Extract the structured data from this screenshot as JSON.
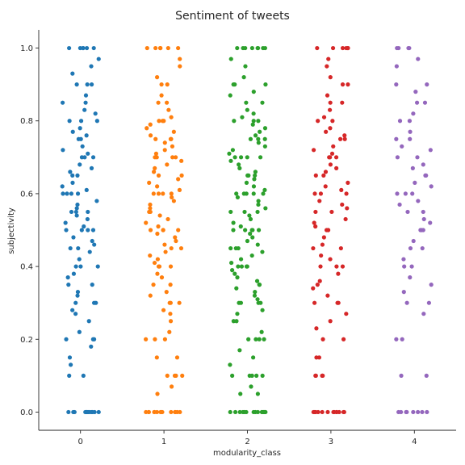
{
  "chart_data": {
    "type": "scatter",
    "subtype": "strip",
    "title": "Sentiment of tweets",
    "xlabel": "modularity_class",
    "ylabel": "subjectivity",
    "ylim": [
      -0.05,
      1.05
    ],
    "yticks": [
      "0.0",
      "0.2",
      "0.4",
      "0.6",
      "0.8",
      "1.0"
    ],
    "categories": [
      "0",
      "1",
      "2",
      "3",
      "4"
    ],
    "grid": false,
    "colors": [
      "#1f77b4",
      "#ff7f0e",
      "#2ca02c",
      "#d62728",
      "#9467bd"
    ],
    "series": [
      {
        "values": [
          0.0,
          0.0,
          0.0,
          0.0,
          0.0,
          0.0,
          0.0,
          0.0,
          0.0,
          0.0,
          0.0,
          0.0,
          0.0,
          0.1,
          0.1,
          0.13,
          0.15,
          0.18,
          0.2,
          0.2,
          0.2,
          0.22,
          0.25,
          0.27,
          0.28,
          0.3,
          0.3,
          0.3,
          0.32,
          0.33,
          0.35,
          0.35,
          0.37,
          0.38,
          0.4,
          0.4,
          0.4,
          0.42,
          0.44,
          0.45,
          0.45,
          0.46,
          0.47,
          0.48,
          0.5,
          0.5,
          0.5,
          0.5,
          0.51,
          0.52,
          0.53,
          0.54,
          0.55,
          0.55,
          0.55,
          0.56,
          0.57,
          0.58,
          0.6,
          0.6,
          0.6,
          0.6,
          0.61,
          0.62,
          0.63,
          0.65,
          0.65,
          0.66,
          0.67,
          0.68,
          0.7,
          0.7,
          0.7,
          0.71,
          0.72,
          0.73,
          0.75,
          0.75,
          0.76,
          0.77,
          0.78,
          0.8,
          0.8,
          0.8,
          0.82,
          0.83,
          0.85,
          0.85,
          0.87,
          0.9,
          0.9,
          0.9,
          0.93,
          0.95,
          0.97,
          1.0,
          1.0,
          1.0,
          1.0,
          1.0,
          1.0
        ]
      },
      {
        "values": [
          0.0,
          0.0,
          0.0,
          0.0,
          0.0,
          0.0,
          0.0,
          0.0,
          0.0,
          0.0,
          0.0,
          0.0,
          0.0,
          0.0,
          0.05,
          0.07,
          0.1,
          0.1,
          0.1,
          0.1,
          0.15,
          0.15,
          0.2,
          0.2,
          0.2,
          0.22,
          0.25,
          0.27,
          0.28,
          0.3,
          0.3,
          0.3,
          0.32,
          0.33,
          0.35,
          0.35,
          0.37,
          0.38,
          0.4,
          0.4,
          0.4,
          0.41,
          0.42,
          0.43,
          0.44,
          0.45,
          0.45,
          0.46,
          0.47,
          0.48,
          0.49,
          0.5,
          0.5,
          0.5,
          0.5,
          0.51,
          0.52,
          0.53,
          0.54,
          0.55,
          0.55,
          0.56,
          0.57,
          0.58,
          0.59,
          0.6,
          0.6,
          0.6,
          0.6,
          0.61,
          0.62,
          0.63,
          0.64,
          0.65,
          0.65,
          0.66,
          0.67,
          0.68,
          0.69,
          0.7,
          0.7,
          0.7,
          0.7,
          0.71,
          0.72,
          0.73,
          0.74,
          0.75,
          0.75,
          0.75,
          0.76,
          0.77,
          0.78,
          0.79,
          0.8,
          0.8,
          0.8,
          0.81,
          0.83,
          0.85,
          0.85,
          0.87,
          0.9,
          0.9,
          0.92,
          0.95,
          0.97,
          1.0,
          1.0,
          1.0,
          1.0,
          1.0,
          1.0,
          1.0
        ]
      },
      {
        "values": [
          0.0,
          0.0,
          0.0,
          0.0,
          0.0,
          0.0,
          0.0,
          0.0,
          0.0,
          0.0,
          0.0,
          0.0,
          0.0,
          0.0,
          0.0,
          0.05,
          0.05,
          0.07,
          0.1,
          0.1,
          0.1,
          0.1,
          0.1,
          0.13,
          0.15,
          0.17,
          0.2,
          0.2,
          0.2,
          0.2,
          0.22,
          0.25,
          0.25,
          0.27,
          0.28,
          0.3,
          0.3,
          0.3,
          0.3,
          0.31,
          0.32,
          0.33,
          0.34,
          0.35,
          0.35,
          0.36,
          0.37,
          0.38,
          0.39,
          0.4,
          0.4,
          0.4,
          0.4,
          0.41,
          0.42,
          0.43,
          0.44,
          0.45,
          0.45,
          0.45,
          0.46,
          0.47,
          0.48,
          0.49,
          0.5,
          0.5,
          0.5,
          0.5,
          0.5,
          0.51,
          0.52,
          0.53,
          0.54,
          0.55,
          0.55,
          0.55,
          0.56,
          0.57,
          0.58,
          0.59,
          0.6,
          0.6,
          0.6,
          0.6,
          0.6,
          0.61,
          0.62,
          0.63,
          0.64,
          0.65,
          0.65,
          0.65,
          0.66,
          0.67,
          0.68,
          0.69,
          0.7,
          0.7,
          0.7,
          0.7,
          0.71,
          0.72,
          0.73,
          0.74,
          0.75,
          0.75,
          0.75,
          0.76,
          0.77,
          0.78,
          0.79,
          0.8,
          0.8,
          0.8,
          0.81,
          0.82,
          0.83,
          0.85,
          0.85,
          0.87,
          0.88,
          0.9,
          0.9,
          0.9,
          0.92,
          0.95,
          0.97,
          1.0,
          1.0,
          1.0,
          1.0,
          1.0,
          1.0,
          1.0,
          1.0
        ]
      },
      {
        "values": [
          0.0,
          0.0,
          0.0,
          0.0,
          0.0,
          0.0,
          0.0,
          0.0,
          0.0,
          0.0,
          0.0,
          0.0,
          0.0,
          0.1,
          0.1,
          0.1,
          0.1,
          0.15,
          0.15,
          0.2,
          0.2,
          0.23,
          0.25,
          0.27,
          0.3,
          0.3,
          0.3,
          0.32,
          0.34,
          0.35,
          0.36,
          0.38,
          0.4,
          0.4,
          0.4,
          0.42,
          0.43,
          0.45,
          0.45,
          0.46,
          0.48,
          0.5,
          0.5,
          0.5,
          0.51,
          0.52,
          0.53,
          0.55,
          0.55,
          0.56,
          0.57,
          0.58,
          0.6,
          0.6,
          0.6,
          0.61,
          0.62,
          0.63,
          0.65,
          0.65,
          0.66,
          0.67,
          0.68,
          0.7,
          0.7,
          0.7,
          0.71,
          0.72,
          0.73,
          0.75,
          0.75,
          0.76,
          0.77,
          0.78,
          0.8,
          0.8,
          0.81,
          0.83,
          0.85,
          0.85,
          0.87,
          0.9,
          0.9,
          0.92,
          0.95,
          0.97,
          1.0,
          1.0,
          1.0,
          1.0,
          1.0,
          1.0
        ]
      },
      {
        "values": [
          0.0,
          0.0,
          0.0,
          0.0,
          0.0,
          0.0,
          0.0,
          0.0,
          0.1,
          0.1,
          0.2,
          0.2,
          0.27,
          0.3,
          0.3,
          0.33,
          0.35,
          0.37,
          0.4,
          0.4,
          0.42,
          0.45,
          0.45,
          0.47,
          0.5,
          0.5,
          0.5,
          0.52,
          0.53,
          0.55,
          0.55,
          0.57,
          0.58,
          0.6,
          0.6,
          0.6,
          0.62,
          0.63,
          0.65,
          0.65,
          0.67,
          0.68,
          0.7,
          0.7,
          0.72,
          0.73,
          0.75,
          0.75,
          0.77,
          0.8,
          0.8,
          0.82,
          0.85,
          0.85,
          0.88,
          0.9,
          0.9,
          0.95,
          0.97,
          1.0,
          1.0,
          1.0,
          1.0
        ]
      }
    ]
  }
}
